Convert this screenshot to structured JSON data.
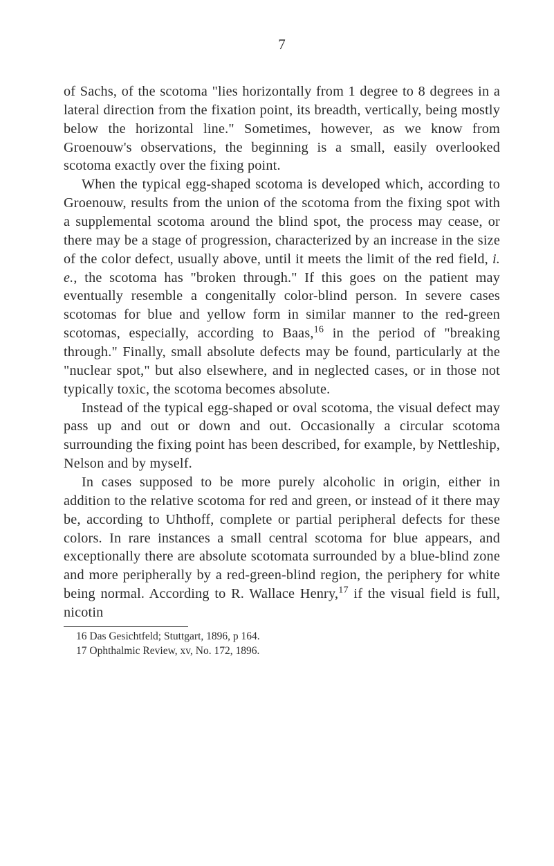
{
  "page_number": "7",
  "paragraphs": [
    "of Sachs, of the scotoma \"lies horizontally from 1 degree to 8 degrees in a lateral direction from the fix­ation point, its breadth, vertically, being mostly below the horizontal line.\" Sometimes, however, as we know from Groenouw's observations, the beginning is a small, easily overlooked scotoma exactly over the fixing point.",
    "When the typical egg-shaped scotoma is developed which, according to Groenouw, results from the union of the scotoma from the fixing spot with a supple­mental scotoma around the blind spot, the process may cease, or there may be a stage of progression, characterized by an increase in the size of the color defect, usually above, until it meets the limit of the red field, i. e., the scotoma has \"broken through.\" If this goes on the patient may eventually resemble a congenitally color-blind person. In severe cases scotomas for blue and yellow form in similar manner to the red-green scotomas, especially, according to Baas,¹⁶ in the period of \"breaking through.\" Finally, small absolute defects may be found, particularly at the \"nuclear spot,\" but also elsewhere, and in neg­lected cases, or in those not typically toxic, the sco­toma becomes absolute.",
    "Instead of the typical egg-shaped or oval scotoma, the visual defect may pass up and out or down and out. Occasionally a circular scotoma surrounding the fixing point has been described, for example, by Net­tleship, Nelson and by myself.",
    "In cases supposed to be more purely alcoholic in origin, either in addition to the relative scotoma for red and green, or instead of it there may be, according to Uhthoff, complete or partial peripheral defects for these colors. In rare instances a small central sco­toma for blue appears, and exceptionally there are absolute scotomata surrounded by a blue-blind zone and more peripherally by a red-green-blind region, the periphery for white being normal. According to R. Wallace Henry,¹⁷ if the visual field is full, nicotin"
  ],
  "footnotes": [
    "16 Das Gesichtfeld; Stuttgart, 1896, p 164.",
    "17 Ophthalmic Review, xv, No. 172, 1896."
  ]
}
